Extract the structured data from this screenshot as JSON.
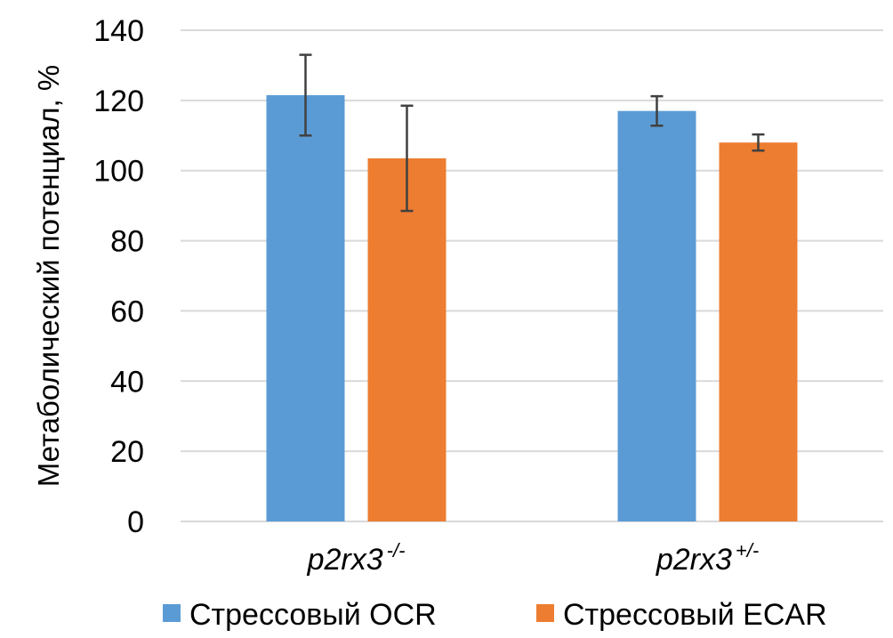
{
  "chart_data": {
    "type": "bar",
    "title": "",
    "xlabel": "",
    "ylabel": "Метаболический потенциал, %",
    "ylim": [
      0,
      140
    ],
    "yticks": [
      0,
      20,
      40,
      60,
      80,
      100,
      120,
      140
    ],
    "grid": true,
    "legend_position": "bottom",
    "categories": [
      {
        "base": "p2rx3",
        "sup": "-/-"
      },
      {
        "base": "p2rx3",
        "sup": "+/-"
      }
    ],
    "series": [
      {
        "name": "Стрессовый OCR",
        "color": "#5b9bd5",
        "values": [
          121.5,
          117
        ],
        "errors": [
          11.5,
          4.2
        ]
      },
      {
        "name": "Стрессовый ECAR",
        "color": "#ed7d31",
        "values": [
          103.5,
          108
        ],
        "errors": [
          15,
          2.3
        ]
      }
    ],
    "colors": {
      "grid": "#d9d9d9",
      "error_bar": "#404040",
      "text": "#000000"
    }
  }
}
